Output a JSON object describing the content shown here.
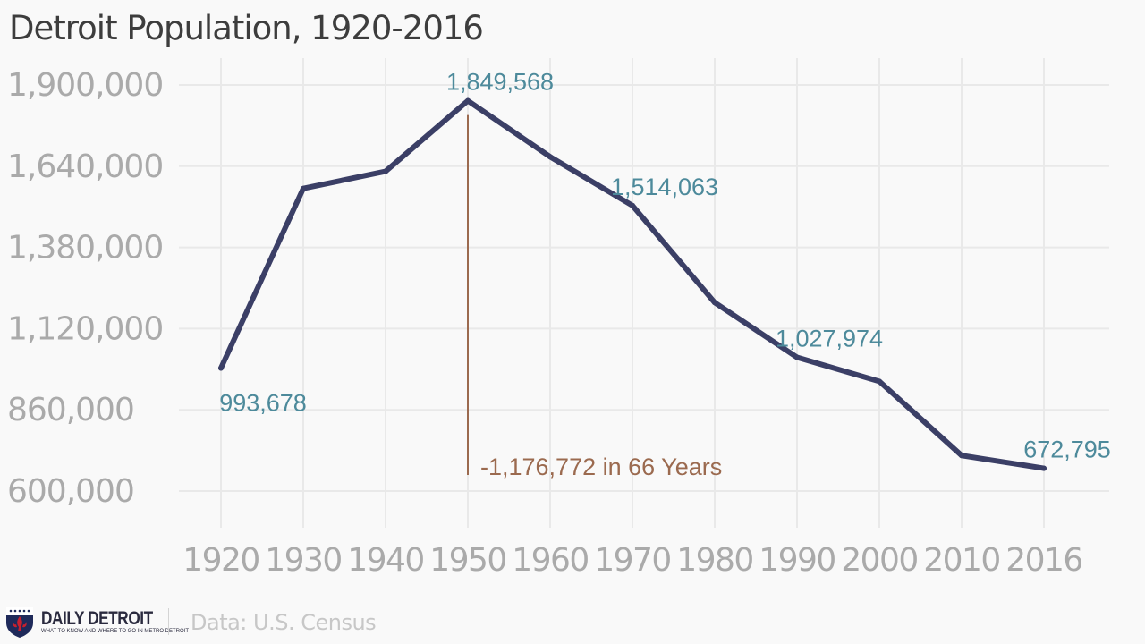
{
  "chart_data": {
    "type": "line",
    "title": "Detroit Population, 1920-2016",
    "xlabel": "",
    "ylabel": "",
    "categories": [
      "1920",
      "1930",
      "1940",
      "1950",
      "1960",
      "1970",
      "1980",
      "1990",
      "2000",
      "2010",
      "2016"
    ],
    "series": [
      {
        "values": [
          993678,
          1568662,
          1623452,
          1849568,
          1670144,
          1514063,
          1203339,
          1027974,
          951270,
          713777,
          672795
        ],
        "color": "#3b3f66"
      }
    ],
    "y_ticks": [
      "600,000",
      "860,000",
      "1,120,000",
      "1,380,000",
      "1,640,000",
      "1,900,000"
    ],
    "y_tick_values": [
      600000,
      860000,
      1120000,
      1380000,
      1640000,
      1900000
    ],
    "ylim": [
      600000,
      1900000
    ],
    "grid": true,
    "data_labels": [
      {
        "category": "1920",
        "text": "993,678",
        "placement": "below"
      },
      {
        "category": "1950",
        "text": "1,849,568",
        "placement": "above"
      },
      {
        "category": "1970",
        "text": "1,514,063",
        "placement": "above"
      },
      {
        "category": "1990",
        "text": "1,027,974",
        "placement": "above"
      },
      {
        "category": "2016",
        "text": "672,795",
        "placement": "above"
      }
    ],
    "annotation": {
      "text": "-1,176,772 in 66 Years",
      "category": "1950",
      "color": "#9b6a4f"
    },
    "label_color": "#4d8a9b"
  },
  "footer": {
    "brand_name": "DAILY DETROIT",
    "brand_tagline": "WHAT TO KNOW AND WHERE TO GO IN METRO DETROIT",
    "logo_icon": "fleur-de-lis-shield-icon",
    "source": "Data: U.S. Census"
  }
}
